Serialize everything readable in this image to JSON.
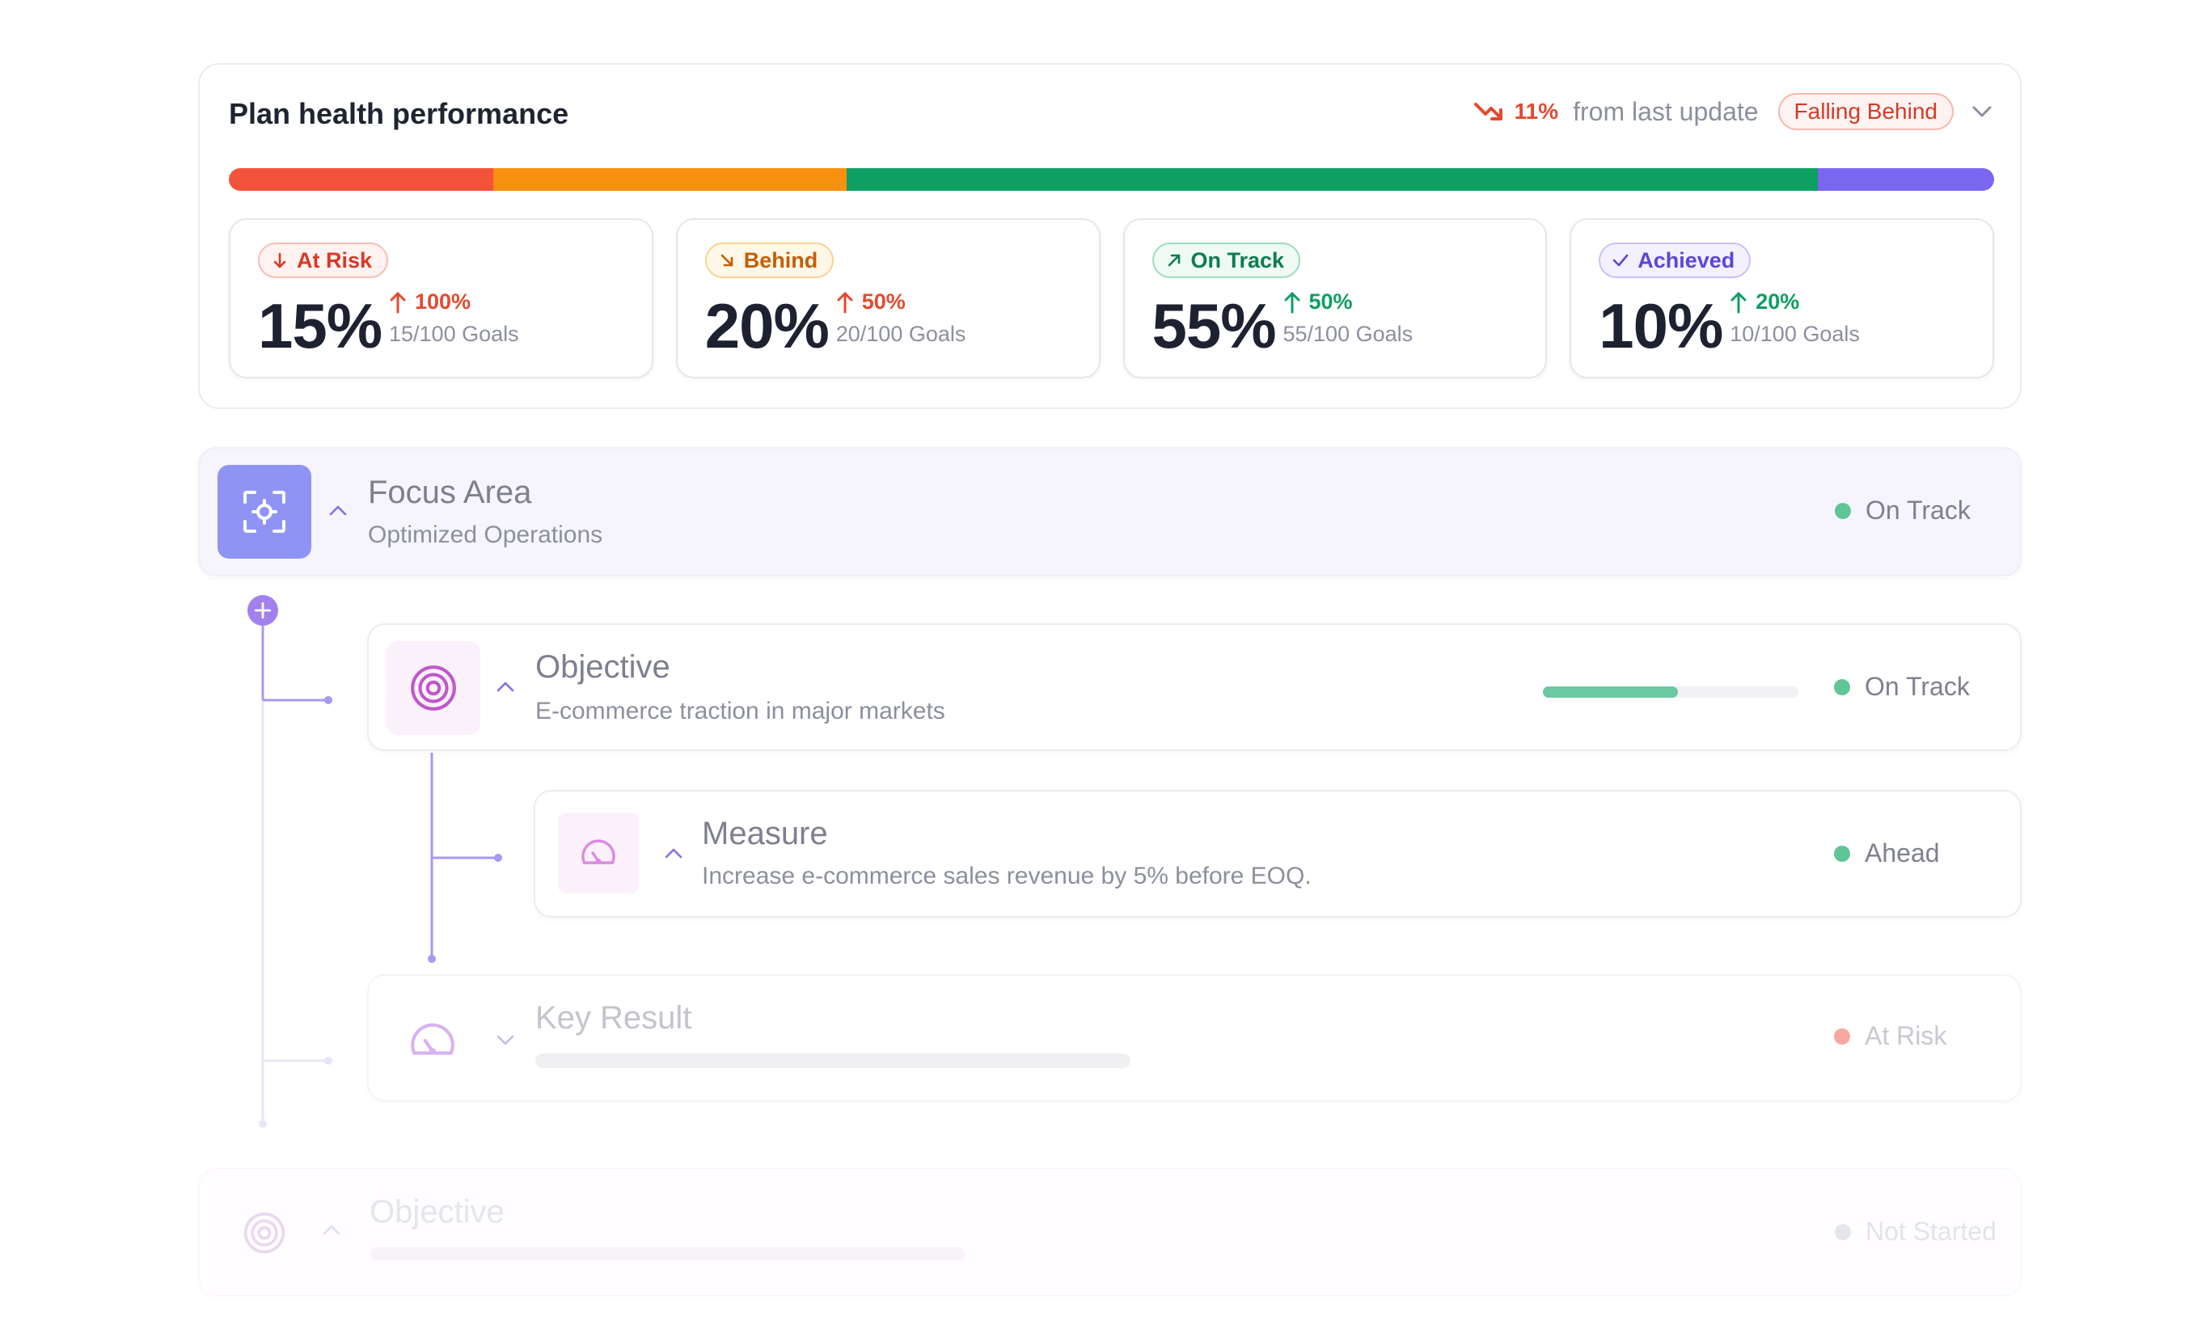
{
  "health": {
    "title": "Plan health performance",
    "trend_pct": "11%",
    "trend_text": "from last update",
    "badge": "Falling Behind",
    "segments": [
      {
        "name": "at-risk",
        "value": 15,
        "color": "#f4533b"
      },
      {
        "name": "behind",
        "value": 20,
        "color": "#f7900f"
      },
      {
        "name": "on-track",
        "value": 55,
        "color": "#0e9f63"
      },
      {
        "name": "achieved",
        "value": 10,
        "color": "#7b67ef"
      }
    ],
    "stats": [
      {
        "label": "At Risk",
        "pct": "15%",
        "delta": "100%",
        "goals": "15/100 Goals",
        "badge_color": "#d63a26",
        "badge_bg": "#fff2f0",
        "badge_border": "#f7bdb3",
        "delta_color": "#e5492f",
        "icon": "arrow-down-icon"
      },
      {
        "label": "Behind",
        "pct": "20%",
        "delta": "50%",
        "goals": "20/100 Goals",
        "badge_color": "#c55e06",
        "badge_bg": "#fff7e8",
        "badge_border": "#f8d28f",
        "delta_color": "#e5492f",
        "icon": "arrow-down-right-icon"
      },
      {
        "label": "On Track",
        "pct": "55%",
        "delta": "50%",
        "goals": "55/100 Goals",
        "badge_color": "#0b7d4e",
        "badge_bg": "#eefaf3",
        "badge_border": "#9fdcbd",
        "delta_color": "#0e9f63",
        "icon": "arrow-up-right-icon"
      },
      {
        "label": "Achieved",
        "pct": "10%",
        "delta": "20%",
        "goals": "10/100 Goals",
        "badge_color": "#5b46d6",
        "badge_bg": "#f3f1ff",
        "badge_border": "#c9c0f8",
        "delta_color": "#0e9f63",
        "icon": "check-icon"
      }
    ]
  },
  "tree": {
    "focus": {
      "title": "Focus Area",
      "subtitle": "Optimized Operations",
      "status": "On Track",
      "status_color": "#5fc595"
    },
    "objective": {
      "title": "Objective",
      "subtitle": "E-commerce traction in major markets",
      "status": "On Track",
      "status_color": "#5fc595",
      "progress": 0.53
    },
    "measure": {
      "title": "Measure",
      "subtitle": "Increase e-commerce sales revenue by 5% before EOQ.",
      "status": "Ahead",
      "status_color": "#5fc595"
    },
    "key_result": {
      "title": "Key Result",
      "status": "At Risk",
      "status_color": "#f5a9a0"
    },
    "objective2": {
      "title": "Objective",
      "status": "Not Started",
      "status_color": "#e2e2e6"
    }
  }
}
